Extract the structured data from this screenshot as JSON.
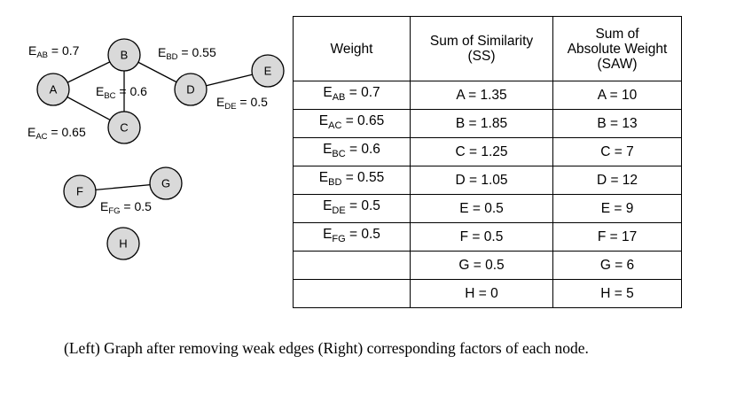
{
  "graph": {
    "nodes": [
      {
        "id": "A",
        "label": "A"
      },
      {
        "id": "B",
        "label": "B"
      },
      {
        "id": "C",
        "label": "C"
      },
      {
        "id": "D",
        "label": "D"
      },
      {
        "id": "E",
        "label": "E"
      },
      {
        "id": "F",
        "label": "F"
      },
      {
        "id": "G",
        "label": "G"
      },
      {
        "id": "H",
        "label": "H"
      }
    ],
    "edges": [
      {
        "from": "A",
        "to": "B",
        "sub": "AB",
        "value": "0.7"
      },
      {
        "from": "A",
        "to": "C",
        "sub": "AC",
        "value": "0.65"
      },
      {
        "from": "B",
        "to": "C",
        "sub": "BC",
        "value": "0.6"
      },
      {
        "from": "B",
        "to": "D",
        "sub": "BD",
        "value": "0.55"
      },
      {
        "from": "D",
        "to": "E",
        "sub": "DE",
        "value": "0.5"
      },
      {
        "from": "F",
        "to": "G",
        "sub": "FG",
        "value": "0.5"
      }
    ]
  },
  "table": {
    "headers": {
      "weight": "Weight",
      "ss": [
        "Sum of Similarity",
        "(SS)"
      ],
      "saw": [
        "Sum of",
        "Absolute Weight",
        "(SAW)"
      ]
    },
    "rows": [
      {
        "w_sub": "AB",
        "w_val": "0.7",
        "ss": "A = 1.35",
        "saw": "A = 10"
      },
      {
        "w_sub": "AC",
        "w_val": "0.65",
        "ss": "B = 1.85",
        "saw": "B = 13"
      },
      {
        "w_sub": "BC",
        "w_val": "0.6",
        "ss": "C = 1.25",
        "saw": "C = 7"
      },
      {
        "w_sub": "BD",
        "w_val": "0.55",
        "ss": "D = 1.05",
        "saw": "D = 12"
      },
      {
        "w_sub": "DE",
        "w_val": "0.5",
        "ss": "E = 0.5",
        "saw": "E = 9"
      },
      {
        "w_sub": "FG",
        "w_val": "0.5",
        "ss": "F = 0.5",
        "saw": "F = 17"
      },
      {
        "w_sub": "",
        "w_val": "",
        "ss": "G = 0.5",
        "saw": "G = 6"
      },
      {
        "w_sub": "",
        "w_val": "",
        "ss": "H = 0",
        "saw": "H = 5"
      }
    ]
  },
  "caption": "(Left) Graph after removing weak edges (Right) corresponding factors of each node.",
  "colors": {
    "node_fill": "#d9d9d9",
    "stroke": "#000000"
  }
}
